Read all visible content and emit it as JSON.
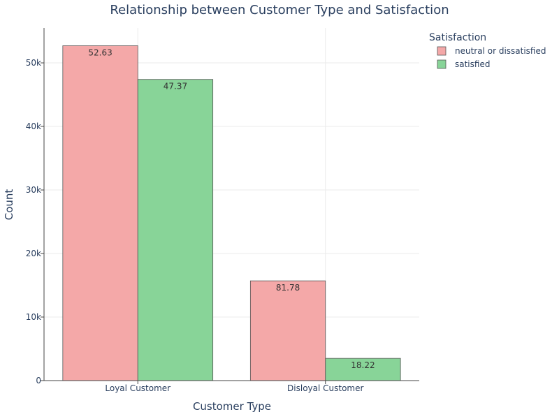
{
  "chart_data": {
    "type": "bar",
    "title": "Relationship between Customer Type and Satisfaction",
    "xlabel": "Customer Type",
    "ylabel": "Count",
    "categories": [
      "Loyal Customer",
      "Disloyal Customer"
    ],
    "ylim": [
      0,
      55500
    ],
    "yticks": [
      0,
      10000,
      20000,
      30000,
      40000,
      50000
    ],
    "ytick_labels": [
      "0",
      "10k",
      "20k",
      "30k",
      "40k",
      "50k"
    ],
    "grid": true,
    "legend": {
      "title": "Satisfaction",
      "position": "top-right"
    },
    "series": [
      {
        "name": "neutral or dissatisfied",
        "color": "#f4a8a8",
        "values": [
          52700,
          15700
        ],
        "labels": [
          "52.63",
          "81.78"
        ]
      },
      {
        "name": "satisfied",
        "color": "#88d498",
        "values": [
          47400,
          3500
        ],
        "labels": [
          "47.37",
          "18.22"
        ]
      }
    ]
  }
}
